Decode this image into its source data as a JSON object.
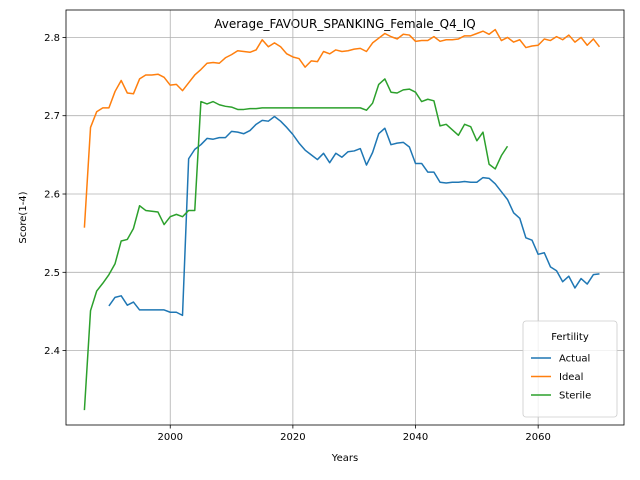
{
  "chart_data": {
    "type": "line",
    "title": "Average_FAVOUR_SPANKING_Female_Q4_IQ",
    "xlabel": "Years",
    "ylabel": "Score(1-4)",
    "xlim": [
      1983,
      2074
    ],
    "ylim": [
      2.305,
      2.835
    ],
    "xticks": [
      2000,
      2020,
      2040,
      2060
    ],
    "yticks": [
      2.4,
      2.5,
      2.6,
      2.7,
      2.8
    ],
    "xtick_labels": [
      "2000",
      "2020",
      "2040",
      "2060"
    ],
    "ytick_labels": [
      "2.4",
      "2.5",
      "2.6",
      "2.7",
      "2.8"
    ],
    "grid": true,
    "legend": {
      "title": "Fertility",
      "placement": "lower-right"
    },
    "series": [
      {
        "name": "Actual",
        "color": "#1f77b4",
        "x": [
          1990,
          1991,
          1992,
          1993,
          1994,
          1995,
          1996,
          1997,
          1998,
          1999,
          2000,
          2001,
          2002,
          2003,
          2004,
          2005,
          2006,
          2007,
          2008,
          2009,
          2010,
          2011,
          2012,
          2013,
          2014,
          2015,
          2016,
          2017,
          2018,
          2019,
          2020,
          2021,
          2022,
          2023,
          2024,
          2025,
          2026,
          2027,
          2028,
          2029,
          2030,
          2031,
          2032,
          2033,
          2034,
          2035,
          2036,
          2037,
          2038,
          2039,
          2040,
          2041,
          2042,
          2043,
          2044,
          2045,
          2046,
          2047,
          2048,
          2049,
          2050,
          2051,
          2052,
          2053,
          2054,
          2055,
          2056,
          2057,
          2058,
          2059,
          2060,
          2061,
          2062,
          2063,
          2064,
          2065,
          2066,
          2067,
          2068,
          2069,
          2070
        ],
        "values": [
          2.457,
          2.468,
          2.47,
          2.458,
          2.462,
          2.452,
          2.452,
          2.452,
          2.452,
          2.452,
          2.449,
          2.449,
          2.445,
          2.645,
          2.657,
          2.663,
          2.671,
          2.67,
          2.672,
          2.672,
          2.68,
          2.679,
          2.677,
          2.681,
          2.689,
          2.694,
          2.693,
          2.699,
          2.693,
          2.685,
          2.676,
          2.665,
          2.656,
          2.65,
          2.644,
          2.652,
          2.64,
          2.652,
          2.647,
          2.654,
          2.655,
          2.658,
          2.637,
          2.653,
          2.677,
          2.684,
          2.663,
          2.665,
          2.666,
          2.66,
          2.639,
          2.639,
          2.628,
          2.628,
          2.615,
          2.614,
          2.615,
          2.615,
          2.616,
          2.615,
          2.615,
          2.621,
          2.62,
          2.613,
          2.603,
          2.593,
          2.576,
          2.569,
          2.544,
          2.541,
          2.523,
          2.525,
          2.507,
          2.502,
          2.488,
          2.495,
          2.48,
          2.492,
          2.485,
          2.497,
          2.498
        ]
      },
      {
        "name": "Ideal",
        "color": "#ff7f0e",
        "x": [
          1986,
          1987,
          1988,
          1989,
          1990,
          1991,
          1992,
          1993,
          1994,
          1995,
          1996,
          1997,
          1998,
          1999,
          2000,
          2001,
          2002,
          2003,
          2004,
          2005,
          2006,
          2007,
          2008,
          2009,
          2010,
          2011,
          2012,
          2013,
          2014,
          2015,
          2016,
          2017,
          2018,
          2019,
          2020,
          2021,
          2022,
          2023,
          2024,
          2025,
          2026,
          2027,
          2028,
          2029,
          2030,
          2031,
          2032,
          2033,
          2034,
          2035,
          2036,
          2037,
          2038,
          2039,
          2040,
          2041,
          2042,
          2043,
          2044,
          2045,
          2046,
          2047,
          2048,
          2049,
          2050,
          2051,
          2052,
          2053,
          2054,
          2055,
          2056,
          2057,
          2058,
          2059,
          2060,
          2061,
          2062,
          2063,
          2064,
          2065,
          2066,
          2067,
          2068,
          2069,
          2070
        ],
        "values": [
          2.557,
          2.685,
          2.705,
          2.71,
          2.71,
          2.731,
          2.745,
          2.729,
          2.728,
          2.747,
          2.752,
          2.752,
          2.753,
          2.749,
          2.739,
          2.74,
          2.732,
          2.742,
          2.752,
          2.759,
          2.767,
          2.768,
          2.767,
          2.774,
          2.778,
          2.783,
          2.782,
          2.781,
          2.784,
          2.797,
          2.788,
          2.793,
          2.788,
          2.779,
          2.775,
          2.773,
          2.762,
          2.77,
          2.769,
          2.782,
          2.779,
          2.784,
          2.782,
          2.783,
          2.785,
          2.786,
          2.782,
          2.793,
          2.799,
          2.805,
          2.801,
          2.798,
          2.804,
          2.803,
          2.795,
          2.796,
          2.796,
          2.801,
          2.795,
          2.797,
          2.797,
          2.798,
          2.802,
          2.802,
          2.805,
          2.808,
          2.804,
          2.81,
          2.796,
          2.8,
          2.794,
          2.797,
          2.787,
          2.789,
          2.79,
          2.798,
          2.796,
          2.801,
          2.797,
          2.803,
          2.794,
          2.8,
          2.79,
          2.798,
          2.788
        ]
      },
      {
        "name": "Sterile",
        "color": "#2ca02c",
        "x": [
          1986,
          1987,
          1988,
          1989,
          1990,
          1991,
          1992,
          1993,
          1994,
          1995,
          1996,
          1997,
          1998,
          1999,
          2000,
          2001,
          2002,
          2003,
          2004,
          2005,
          2006,
          2007,
          2008,
          2009,
          2010,
          2011,
          2012,
          2013,
          2014,
          2015,
          2016,
          2017,
          2018,
          2019,
          2020,
          2021,
          2022,
          2023,
          2024,
          2025,
          2026,
          2027,
          2028,
          2029,
          2030,
          2031,
          2032,
          2033,
          2034,
          2035,
          2036,
          2037,
          2038,
          2039,
          2040,
          2041,
          2042,
          2043,
          2044,
          2045,
          2046,
          2047,
          2048,
          2049,
          2050,
          2051,
          2052,
          2053,
          2054,
          2055
        ],
        "values": [
          2.324,
          2.451,
          2.476,
          2.486,
          2.497,
          2.511,
          2.54,
          2.542,
          2.556,
          2.585,
          2.579,
          2.578,
          2.577,
          2.561,
          2.571,
          2.574,
          2.571,
          2.579,
          2.579,
          2.718,
          2.715,
          2.718,
          2.714,
          2.712,
          2.711,
          2.708,
          2.708,
          2.709,
          2.709,
          2.71,
          2.71,
          2.71,
          2.71,
          2.71,
          2.71,
          2.71,
          2.71,
          2.71,
          2.71,
          2.71,
          2.71,
          2.71,
          2.71,
          2.71,
          2.71,
          2.71,
          2.707,
          2.716,
          2.74,
          2.747,
          2.73,
          2.729,
          2.733,
          2.734,
          2.73,
          2.718,
          2.721,
          2.719,
          2.687,
          2.689,
          2.682,
          2.675,
          2.689,
          2.686,
          2.668,
          2.679,
          2.638,
          2.632,
          2.649,
          2.661
        ]
      }
    ]
  }
}
